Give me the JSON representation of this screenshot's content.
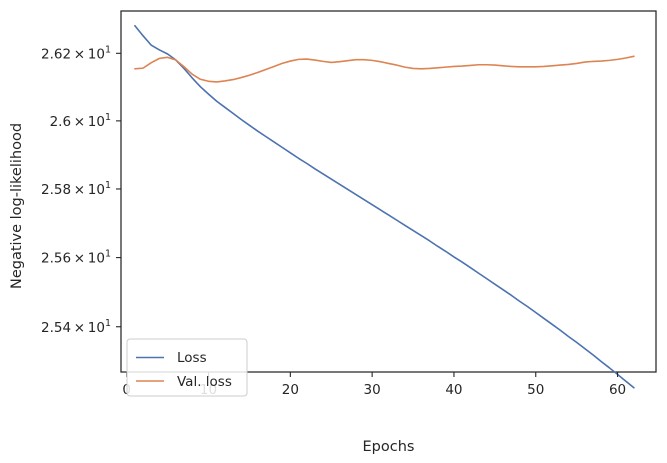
{
  "chart_data": {
    "type": "line",
    "title": "",
    "xlabel": "Epochs",
    "ylabel": "Negative log-likelihood",
    "y_scale": "log",
    "xlim": [
      -0.7,
      64.7
    ],
    "ylim": [
      25.27,
      26.326
    ],
    "xticks": [
      0,
      10,
      20,
      30,
      40,
      50,
      60
    ],
    "yticks": [
      25.4,
      25.6,
      25.8,
      26.0,
      26.2
    ],
    "ytick_labels": [
      {
        "mantissa": "2.54",
        "base": "10",
        "exp": "1"
      },
      {
        "mantissa": "2.56",
        "base": "10",
        "exp": "1"
      },
      {
        "mantissa": "2.58",
        "base": "10",
        "exp": "1"
      },
      {
        "mantissa": "2.6",
        "base": "10",
        "exp": "1"
      },
      {
        "mantissa": "2.62",
        "base": "10",
        "exp": "1"
      }
    ],
    "ytick_times": "×",
    "grid": false,
    "legend_position": "lower-left",
    "x": [
      1,
      2,
      3,
      4,
      5,
      6,
      7,
      8,
      9,
      10,
      11,
      12,
      13,
      14,
      15,
      16,
      17,
      18,
      19,
      20,
      21,
      22,
      23,
      24,
      25,
      26,
      27,
      28,
      29,
      30,
      31,
      32,
      33,
      34,
      35,
      36,
      37,
      38,
      39,
      40,
      41,
      42,
      43,
      44,
      45,
      46,
      47,
      48,
      49,
      50,
      51,
      52,
      53,
      54,
      55,
      56,
      57,
      58,
      59,
      60,
      61,
      62
    ],
    "series": [
      {
        "name": "Loss",
        "color": "#4c72b0",
        "values": [
          26.282,
          26.252,
          26.224,
          26.21,
          26.198,
          26.18,
          26.155,
          26.127,
          26.101,
          26.079,
          26.058,
          26.04,
          26.022,
          26.004,
          25.987,
          25.97,
          25.954,
          25.938,
          25.922,
          25.906,
          25.89,
          25.875,
          25.859,
          25.844,
          25.829,
          25.814,
          25.799,
          25.784,
          25.769,
          25.754,
          25.739,
          25.724,
          25.709,
          25.694,
          25.679,
          25.664,
          25.649,
          25.633,
          25.618,
          25.602,
          25.587,
          25.571,
          25.555,
          25.539,
          25.523,
          25.507,
          25.491,
          25.474,
          25.458,
          25.441,
          25.424,
          25.407,
          25.39,
          25.372,
          25.355,
          25.337,
          25.319,
          25.3,
          25.282,
          25.263,
          25.244,
          25.225
        ]
      },
      {
        "name": "Val. loss",
        "color": "#dd8452",
        "values": [
          26.154,
          26.156,
          26.172,
          26.185,
          26.188,
          26.18,
          26.16,
          26.138,
          26.123,
          26.117,
          26.115,
          26.118,
          26.122,
          26.128,
          26.135,
          26.143,
          26.152,
          26.161,
          26.17,
          26.177,
          26.182,
          26.183,
          26.18,
          26.176,
          26.173,
          26.175,
          26.178,
          26.181,
          26.181,
          26.179,
          26.175,
          26.17,
          26.165,
          26.159,
          26.155,
          26.154,
          26.155,
          26.157,
          26.159,
          26.161,
          26.162,
          26.164,
          26.166,
          26.166,
          26.165,
          26.163,
          26.161,
          26.16,
          26.16,
          26.16,
          26.161,
          26.163,
          26.165,
          26.167,
          26.17,
          26.174,
          26.176,
          26.177,
          26.179,
          26.182,
          26.186,
          26.191
        ]
      }
    ]
  }
}
